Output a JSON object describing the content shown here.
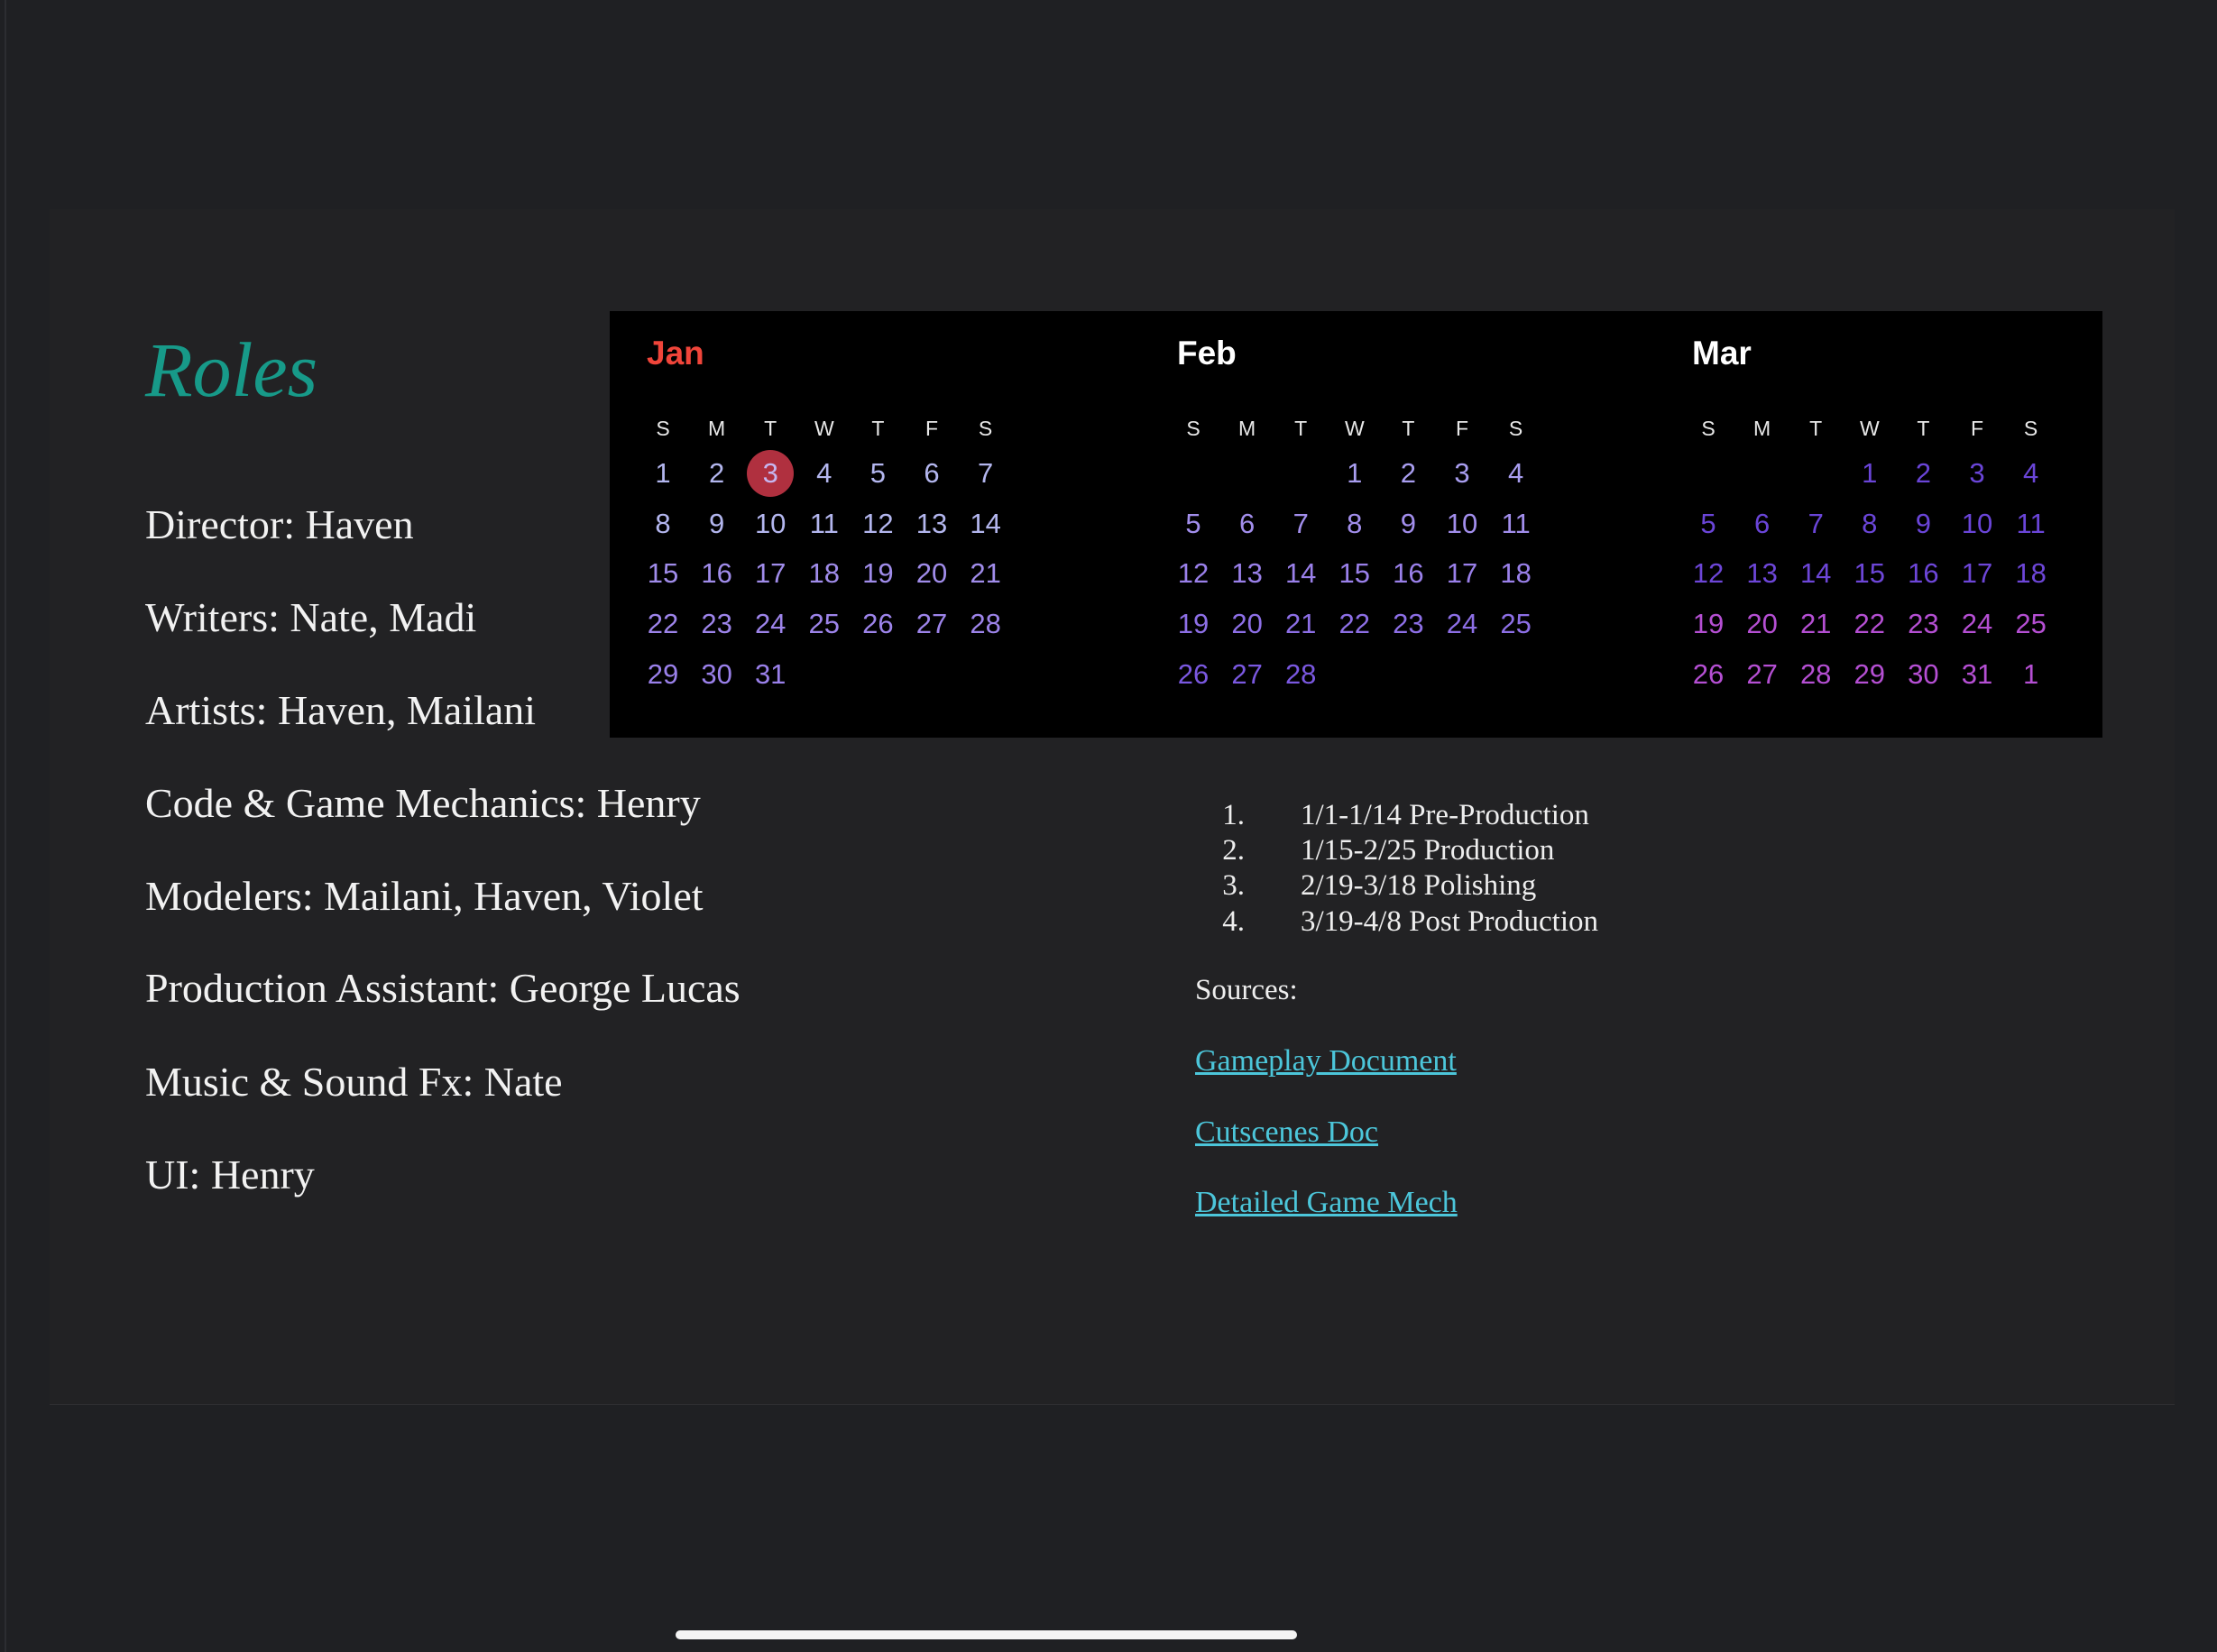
{
  "roles": {
    "title": "Roles",
    "title_color": "#179a89",
    "items": [
      "Director: Haven",
      "Writers: Nate, Madi",
      "Artists: Haven, Mailani",
      "Code & Game Mechanics: Henry",
      "Modelers: Mailani, Haven, Violet",
      "Production Assistant: George Lucas",
      "Music & Sound Fx: Nate",
      "UI: Henry"
    ]
  },
  "calendar": {
    "weekdays": [
      "S",
      "M",
      "T",
      "W",
      "T",
      "F",
      "S"
    ],
    "today": {
      "month": 0,
      "day": 3,
      "color": "#b0303f"
    },
    "months": [
      {
        "name": "Jan",
        "name_color": "#f0453a",
        "rows": [
          [
            1,
            2,
            3,
            4,
            5,
            6,
            7
          ],
          [
            8,
            9,
            10,
            11,
            12,
            13,
            14
          ],
          [
            15,
            16,
            17,
            18,
            19,
            20,
            21
          ],
          [
            22,
            23,
            24,
            25,
            26,
            27,
            28
          ],
          [
            29,
            30,
            31,
            null,
            null,
            null,
            null
          ]
        ],
        "row_colors": [
          "#b3b6ee",
          "#b3b6ee",
          "#a08cea",
          "#9d84ea",
          "#9a80ea"
        ]
      },
      {
        "name": "Feb",
        "name_color": "#ffffff",
        "rows": [
          [
            null,
            null,
            null,
            1,
            2,
            3,
            4
          ],
          [
            5,
            6,
            7,
            8,
            9,
            10,
            11
          ],
          [
            12,
            13,
            14,
            15,
            16,
            17,
            18
          ],
          [
            19,
            20,
            21,
            22,
            23,
            24,
            25
          ],
          [
            26,
            27,
            28,
            null,
            null,
            null,
            null
          ]
        ],
        "row_colors": [
          "#a99ef0",
          "#a28eec",
          "#9a80ea",
          "#8d6fe6",
          "#7a58e0"
        ]
      },
      {
        "name": "Mar",
        "name_color": "#ffffff",
        "rows": [
          [
            null,
            null,
            null,
            1,
            2,
            3,
            4
          ],
          [
            5,
            6,
            7,
            8,
            9,
            10,
            11
          ],
          [
            12,
            13,
            14,
            15,
            16,
            17,
            18
          ],
          [
            19,
            20,
            21,
            22,
            23,
            24,
            25
          ],
          [
            26,
            27,
            28,
            29,
            30,
            31,
            1
          ]
        ],
        "row_colors": [
          "#6a45d8",
          "#6a45d8",
          "#6d46d8",
          "#b54fd3",
          "#b54fd3"
        ]
      }
    ]
  },
  "schedule": [
    {
      "num": "1.",
      "text": "1/1-1/14 Pre-Production"
    },
    {
      "num": "2.",
      "text": "1/15-2/25 Production"
    },
    {
      "num": "3.",
      "text": "2/19-3/18 Polishing"
    },
    {
      "num": "4.",
      "text": "3/19-4/8 Post Production"
    }
  ],
  "sources": {
    "label": "Sources:",
    "link_color": "#4cc6da",
    "links": [
      "Gameplay Document",
      "Cutscenes Doc",
      "Detailed Game Mech"
    ]
  }
}
